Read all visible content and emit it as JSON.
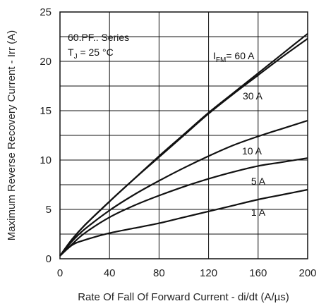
{
  "chart_data": {
    "type": "line",
    "title": "",
    "xlabel": "Rate Of Fall Of Forward Current - di/dt (A/µs)",
    "ylabel": "Maximum Reverse Recovery Current - Irr (A)",
    "xlim": [
      0,
      200
    ],
    "ylim": [
      0,
      25
    ],
    "xticks": [
      0,
      40,
      80,
      120,
      160,
      200
    ],
    "yticks": [
      0,
      5,
      10,
      15,
      20,
      25
    ],
    "grid": true,
    "annotations": {
      "series_name": "60.PF.. Series",
      "temp_prefix": "T",
      "temp_sub": "J",
      "temp_suffix": " = 25 °C",
      "ifm_prefix": "I",
      "ifm_sub": "FM",
      "ifm_suffix": "= 60 A"
    },
    "series": [
      {
        "label": "60 A",
        "x": [
          0,
          10,
          20,
          40,
          60,
          80,
          100,
          120,
          140,
          160,
          180,
          200
        ],
        "y": [
          0.3,
          2.0,
          3.4,
          5.8,
          8.1,
          10.4,
          12.6,
          14.8,
          16.8,
          18.8,
          20.8,
          22.8
        ]
      },
      {
        "label": "30 A",
        "x": [
          0,
          10,
          20,
          40,
          60,
          80,
          100,
          120,
          140,
          160,
          180,
          200
        ],
        "y": [
          0.3,
          2.0,
          3.4,
          5.8,
          8.1,
          10.3,
          12.5,
          14.7,
          16.7,
          18.6,
          20.5,
          22.3
        ]
      },
      {
        "label": "10 A",
        "x": [
          0,
          10,
          20,
          40,
          60,
          80,
          100,
          120,
          140,
          160,
          180,
          200
        ],
        "y": [
          0.3,
          1.8,
          3.0,
          4.9,
          6.5,
          7.9,
          9.2,
          10.4,
          11.5,
          12.4,
          13.2,
          14.0
        ]
      },
      {
        "label": "5 A",
        "x": [
          0,
          10,
          20,
          40,
          60,
          80,
          100,
          120,
          140,
          160,
          180,
          200
        ],
        "y": [
          0.3,
          1.5,
          2.6,
          4.2,
          5.4,
          6.4,
          7.3,
          8.1,
          8.8,
          9.4,
          9.8,
          10.2
        ]
      },
      {
        "label": "1 A",
        "x": [
          0,
          10,
          20,
          40,
          60,
          80,
          100,
          120,
          140,
          160,
          180,
          200
        ],
        "y": [
          0.3,
          1.4,
          1.9,
          2.6,
          3.1,
          3.6,
          4.2,
          4.8,
          5.4,
          6.0,
          6.5,
          7.0
        ]
      }
    ],
    "color": "#111111"
  }
}
